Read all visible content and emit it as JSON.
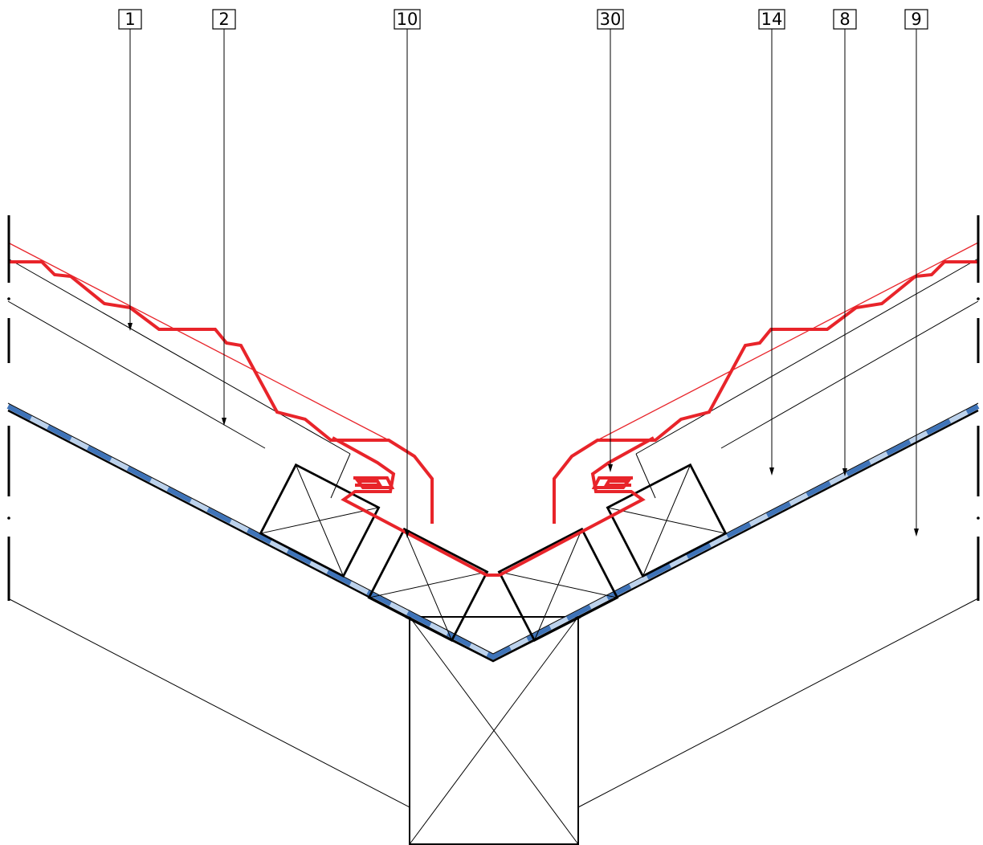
{
  "callouts": [
    {
      "id": "c1",
      "label": "1"
    },
    {
      "id": "c2",
      "label": "2"
    },
    {
      "id": "c10",
      "label": "10"
    },
    {
      "id": "c30",
      "label": "30"
    },
    {
      "id": "c14",
      "label": "14"
    },
    {
      "id": "c8",
      "label": "8"
    },
    {
      "id": "c9",
      "label": "9"
    }
  ],
  "colors": {
    "roof_cladding": "#e8242a",
    "membrane": "#3f74b9",
    "membrane_light": "#bcd2ec",
    "structure": "#000000"
  }
}
